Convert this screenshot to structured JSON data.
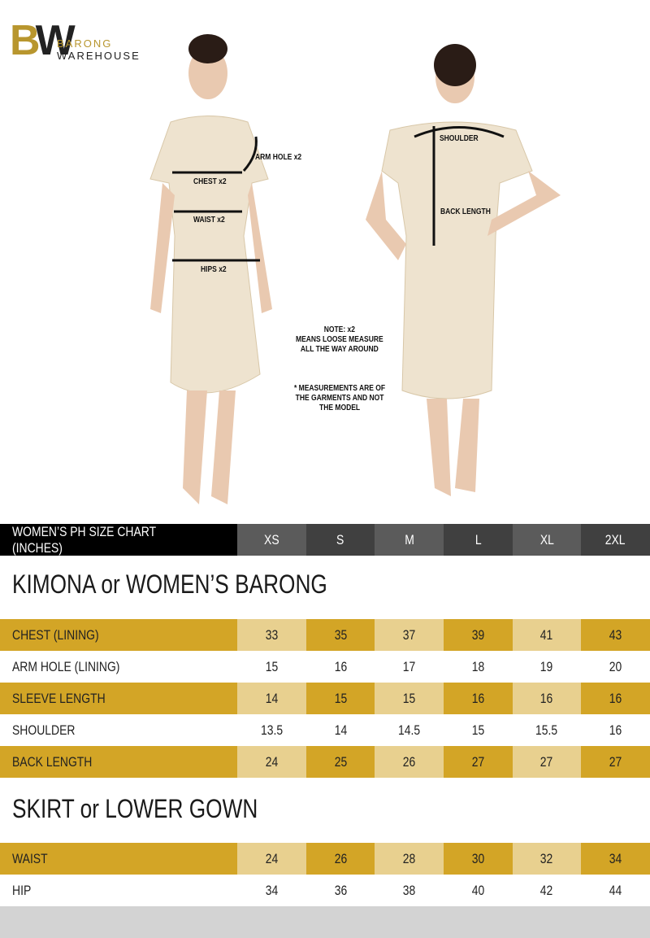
{
  "brand": {
    "mark": "BW",
    "line1": "BARONG",
    "line2": "WAREHOUSE"
  },
  "annotations": {
    "front": [
      "ARM HOLE x2",
      "CHEST x2",
      "WAIST x2",
      "HIPS x2"
    ],
    "back": [
      "SHOULDER",
      "BACK LENGTH"
    ],
    "note": [
      "NOTE: x2",
      "MEANS LOOSE MEASURE",
      "ALL THE WAY AROUND"
    ],
    "disclaimer": [
      "* MEASUREMENTS ARE OF",
      "THE GARMENTS AND NOT",
      "THE MODEL"
    ]
  },
  "colors": {
    "gold": "#d3a526",
    "light_gold": "#e8d08f",
    "header_dark": "#404040",
    "header_light": "#5b5b5b"
  },
  "header": {
    "title": "WOMEN’S PH SIZE CHART (INCHES)",
    "sizes": [
      "XS",
      "S",
      "M",
      "L",
      "XL",
      "2XL"
    ]
  },
  "sections": [
    {
      "title": "KIMONA or WOMEN’S BARONG",
      "rows": [
        {
          "label": "CHEST (LINING)",
          "values": [
            "33",
            "35",
            "37",
            "39",
            "41",
            "43"
          ]
        },
        {
          "label": "ARM HOLE (LINING)",
          "values": [
            "15",
            "16",
            "17",
            "18",
            "19",
            "20"
          ]
        },
        {
          "label": "SLEEVE LENGTH",
          "values": [
            "14",
            "15",
            "15",
            "16",
            "16",
            "16"
          ]
        },
        {
          "label": "SHOULDER",
          "values": [
            "13.5",
            "14",
            "14.5",
            "15",
            "15.5",
            "16"
          ]
        },
        {
          "label": "BACK LENGTH",
          "values": [
            "24",
            "25",
            "26",
            "27",
            "27",
            "27"
          ]
        }
      ]
    },
    {
      "title": "SKIRT or LOWER GOWN",
      "rows": [
        {
          "label": "WAIST",
          "values": [
            "24",
            "26",
            "28",
            "30",
            "32",
            "34"
          ]
        },
        {
          "label": "HIP",
          "values": [
            "34",
            "36",
            "38",
            "40",
            "42",
            "44"
          ]
        }
      ]
    }
  ]
}
